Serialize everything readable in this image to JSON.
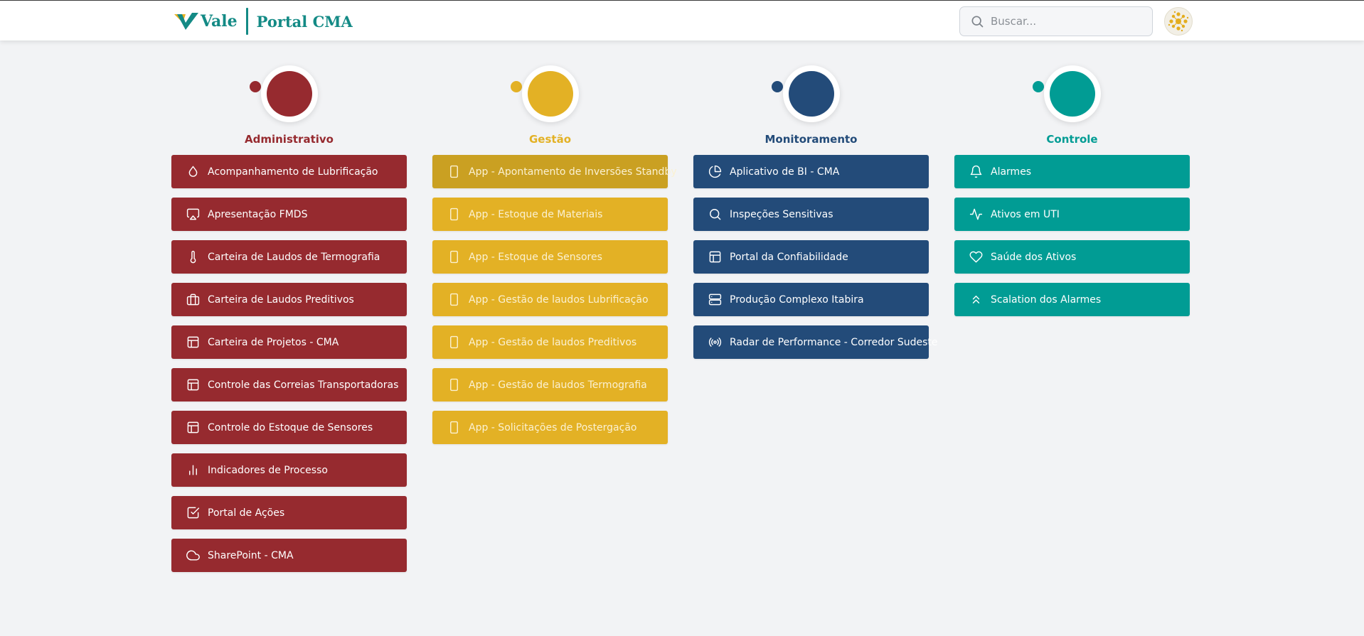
{
  "header": {
    "brand_name": "Vale",
    "portal_title": "Portal CMA",
    "search_placeholder": "Buscar..."
  },
  "colors": {
    "administrativo": "#962a2f",
    "gestao": "#e3b125",
    "monitoramento": "#234b79",
    "controle": "#019c94",
    "brand": "#138a85"
  },
  "columns": [
    {
      "title": "Administrativo",
      "items": [
        {
          "label": "Acompanhamento de Lubrificação",
          "icon": "droplet-icon"
        },
        {
          "label": "Apresentação FMDS",
          "icon": "airplay-icon"
        },
        {
          "label": "Carteira de Laudos de Termografia",
          "icon": "thermometer-icon"
        },
        {
          "label": "Carteira de Laudos Preditivos",
          "icon": "briefcase-icon"
        },
        {
          "label": "Carteira de Projetos - CMA",
          "icon": "layout-icon"
        },
        {
          "label": "Controle das Correias Transportadoras",
          "icon": "layout-icon"
        },
        {
          "label": "Controle do Estoque de Sensores",
          "icon": "layout-icon"
        },
        {
          "label": "Indicadores de Processo",
          "icon": "bar-chart-icon"
        },
        {
          "label": "Portal de Ações",
          "icon": "check-square-icon"
        },
        {
          "label": "SharePoint - CMA",
          "icon": "cloud-icon"
        }
      ]
    },
    {
      "title": "Gestão",
      "items": [
        {
          "label": "App - Apontamento de Inversões Standby",
          "icon": "tablet-icon"
        },
        {
          "label": "App - Estoque de Materiais",
          "icon": "tablet-icon"
        },
        {
          "label": "App - Estoque de Sensores",
          "icon": "tablet-icon"
        },
        {
          "label": "App - Gestão de laudos Lubrificação",
          "icon": "tablet-icon"
        },
        {
          "label": "App - Gestão de laudos Preditivos",
          "icon": "tablet-icon"
        },
        {
          "label": "App - Gestão de laudos Termografia",
          "icon": "tablet-icon"
        },
        {
          "label": "App - Solicitações de Postergação",
          "icon": "tablet-icon"
        }
      ]
    },
    {
      "title": "Monitoramento",
      "items": [
        {
          "label": "Aplicativo de BI - CMA",
          "icon": "pie-chart-icon"
        },
        {
          "label": "Inspeções Sensitivas",
          "icon": "search-icon"
        },
        {
          "label": "Portal da Confiabilidade",
          "icon": "layout-icon"
        },
        {
          "label": "Produção Complexo Itabira",
          "icon": "server-icon"
        },
        {
          "label": "Radar de Performance - Corredor Sudeste",
          "icon": "radio-icon"
        }
      ]
    },
    {
      "title": "Controle",
      "items": [
        {
          "label": "Alarmes",
          "icon": "bell-icon"
        },
        {
          "label": "Ativos em UTI",
          "icon": "activity-icon"
        },
        {
          "label": "Saúde dos Ativos",
          "icon": "heart-icon"
        },
        {
          "label": "Scalation dos Alarmes",
          "icon": "chevrons-up-icon"
        }
      ]
    }
  ]
}
